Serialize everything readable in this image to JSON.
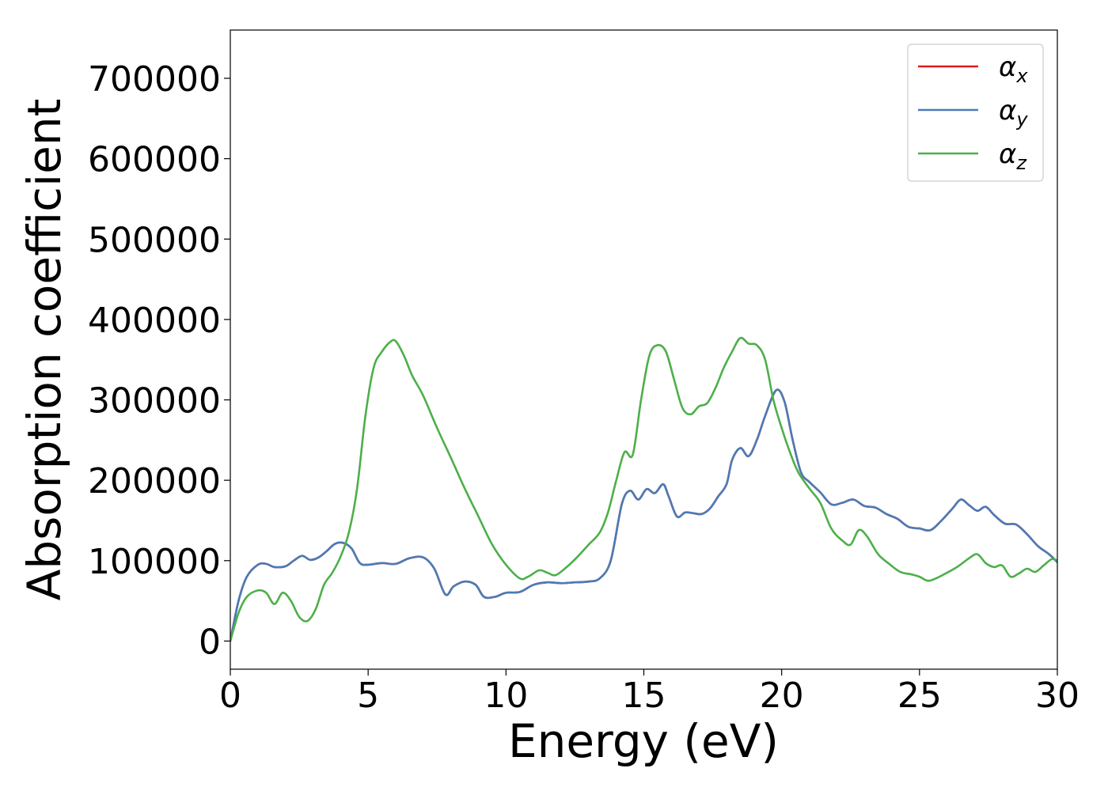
{
  "chart_data": {
    "type": "line",
    "xlabel": "Energy (eV)",
    "ylabel": "Absorption coefficient",
    "xlim": [
      0,
      30
    ],
    "ylim": [
      -35000,
      760000
    ],
    "xticks": [
      0,
      5,
      10,
      15,
      20,
      25,
      30
    ],
    "yticks": [
      0,
      100000,
      200000,
      300000,
      400000,
      500000,
      600000,
      700000
    ],
    "grid": false,
    "legend_position": "top-right",
    "series": [
      {
        "name": "αx",
        "symbol": "α",
        "subscript": "x",
        "color": "#e41a1c",
        "x": [
          0,
          0.3,
          0.6,
          1.0,
          1.3,
          1.6,
          2.0,
          2.3,
          2.6,
          2.9,
          3.2,
          3.5,
          3.8,
          4.1,
          4.4,
          4.7,
          5.0,
          5.5,
          6.0,
          6.5,
          7.0,
          7.4,
          7.8,
          8.1,
          8.5,
          8.9,
          9.2,
          9.6,
          10.0,
          10.5,
          11.0,
          11.5,
          12.0,
          12.5,
          13.0,
          13.4,
          13.8,
          14.2,
          14.5,
          14.8,
          15.1,
          15.4,
          15.7,
          15.9,
          16.2,
          16.5,
          16.8,
          17.1,
          17.4,
          17.7,
          18.0,
          18.2,
          18.5,
          18.8,
          19.1,
          19.4,
          19.8,
          20.1,
          20.4,
          20.7,
          21.0,
          21.4,
          21.8,
          22.2,
          22.6,
          23.0,
          23.4,
          23.8,
          24.2,
          24.6,
          25.0,
          25.4,
          25.8,
          26.2,
          26.5,
          26.8,
          27.1,
          27.4,
          27.7,
          28.1,
          28.5,
          28.9,
          29.3,
          29.7,
          30.0
        ],
        "y": [
          0,
          50000,
          80000,
          95000,
          96000,
          92000,
          93000,
          100000,
          106000,
          101000,
          104000,
          112000,
          121000,
          122000,
          115000,
          97000,
          95000,
          97000,
          96000,
          103000,
          104000,
          90000,
          58000,
          68000,
          74000,
          70000,
          55000,
          55000,
          60000,
          61000,
          70000,
          73000,
          72000,
          73000,
          74000,
          78000,
          100000,
          170000,
          187000,
          176000,
          189000,
          184000,
          195000,
          180000,
          155000,
          160000,
          159000,
          158000,
          165000,
          180000,
          195000,
          225000,
          240000,
          230000,
          250000,
          280000,
          312000,
          298000,
          250000,
          210000,
          198000,
          185000,
          170000,
          172000,
          176000,
          168000,
          166000,
          158000,
          152000,
          142000,
          140000,
          138000,
          150000,
          165000,
          176000,
          169000,
          162000,
          167000,
          157000,
          146000,
          145000,
          133000,
          118000,
          108000,
          98000
        ]
      },
      {
        "name": "αy",
        "symbol": "α",
        "subscript": "y",
        "color": "#4a7bb7",
        "x": [
          0,
          0.3,
          0.6,
          1.0,
          1.3,
          1.6,
          2.0,
          2.3,
          2.6,
          2.9,
          3.2,
          3.5,
          3.8,
          4.1,
          4.4,
          4.7,
          5.0,
          5.5,
          6.0,
          6.5,
          7.0,
          7.4,
          7.8,
          8.1,
          8.5,
          8.9,
          9.2,
          9.6,
          10.0,
          10.5,
          11.0,
          11.5,
          12.0,
          12.5,
          13.0,
          13.4,
          13.8,
          14.2,
          14.5,
          14.8,
          15.1,
          15.4,
          15.7,
          15.9,
          16.2,
          16.5,
          16.8,
          17.1,
          17.4,
          17.7,
          18.0,
          18.2,
          18.5,
          18.8,
          19.1,
          19.4,
          19.8,
          20.1,
          20.4,
          20.7,
          21.0,
          21.4,
          21.8,
          22.2,
          22.6,
          23.0,
          23.4,
          23.8,
          24.2,
          24.6,
          25.0,
          25.4,
          25.8,
          26.2,
          26.5,
          26.8,
          27.1,
          27.4,
          27.7,
          28.1,
          28.5,
          28.9,
          29.3,
          29.7,
          30.0
        ],
        "y": [
          0,
          50000,
          80000,
          95000,
          96000,
          92000,
          93000,
          100000,
          106000,
          101000,
          104000,
          112000,
          121000,
          122000,
          115000,
          97000,
          95000,
          97000,
          96000,
          103000,
          104000,
          90000,
          58000,
          68000,
          74000,
          70000,
          55000,
          55000,
          60000,
          61000,
          70000,
          73000,
          72000,
          73000,
          74000,
          78000,
          100000,
          170000,
          187000,
          176000,
          189000,
          184000,
          195000,
          180000,
          155000,
          160000,
          159000,
          158000,
          165000,
          180000,
          195000,
          225000,
          240000,
          230000,
          250000,
          280000,
          312000,
          298000,
          250000,
          210000,
          198000,
          185000,
          170000,
          172000,
          176000,
          168000,
          166000,
          158000,
          152000,
          142000,
          140000,
          138000,
          150000,
          165000,
          176000,
          169000,
          162000,
          167000,
          157000,
          146000,
          145000,
          133000,
          118000,
          108000,
          98000
        ]
      },
      {
        "name": "αz",
        "symbol": "α",
        "subscript": "z",
        "color": "#4daf4a",
        "x": [
          0,
          0.3,
          0.6,
          1.0,
          1.3,
          1.6,
          1.9,
          2.2,
          2.5,
          2.8,
          3.1,
          3.4,
          3.7,
          4.0,
          4.3,
          4.6,
          4.9,
          5.2,
          5.5,
          5.8,
          6.0,
          6.3,
          6.6,
          7.0,
          7.5,
          8.0,
          8.5,
          9.0,
          9.5,
          10.0,
          10.5,
          10.8,
          11.2,
          11.5,
          11.8,
          12.2,
          12.6,
          13.0,
          13.4,
          13.7,
          14.0,
          14.3,
          14.6,
          14.9,
          15.2,
          15.5,
          15.8,
          16.1,
          16.4,
          16.7,
          17.0,
          17.3,
          17.6,
          17.9,
          18.2,
          18.5,
          18.8,
          19.1,
          19.4,
          19.7,
          20.0,
          20.3,
          20.6,
          21.0,
          21.4,
          21.8,
          22.2,
          22.5,
          22.8,
          23.1,
          23.5,
          23.9,
          24.3,
          24.7,
          25.0,
          25.3,
          25.6,
          26.0,
          26.4,
          26.8,
          27.1,
          27.4,
          27.7,
          28.0,
          28.3,
          28.6,
          28.9,
          29.2,
          29.5,
          29.8,
          30.0
        ],
        "y": [
          0,
          35000,
          55000,
          63000,
          60000,
          46000,
          60000,
          50000,
          30000,
          25000,
          40000,
          70000,
          85000,
          105000,
          135000,
          190000,
          280000,
          340000,
          360000,
          372000,
          373000,
          355000,
          330000,
          305000,
          265000,
          228000,
          190000,
          155000,
          120000,
          95000,
          78000,
          80000,
          88000,
          85000,
          82000,
          92000,
          105000,
          120000,
          135000,
          160000,
          200000,
          235000,
          232000,
          300000,
          355000,
          368000,
          360000,
          325000,
          290000,
          282000,
          292000,
          296000,
          315000,
          340000,
          360000,
          377000,
          370000,
          368000,
          350000,
          300000,
          265000,
          235000,
          210000,
          190000,
          172000,
          140000,
          125000,
          120000,
          138000,
          130000,
          108000,
          96000,
          86000,
          83000,
          80000,
          75000,
          78000,
          85000,
          93000,
          103000,
          108000,
          97000,
          92000,
          94000,
          80000,
          84000,
          90000,
          86000,
          94000,
          102000,
          100000
        ]
      }
    ]
  }
}
